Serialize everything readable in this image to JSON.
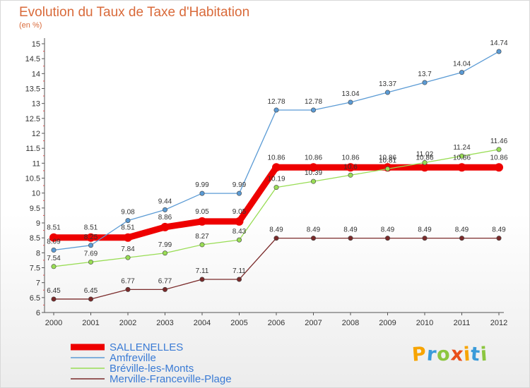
{
  "chart_data": {
    "type": "line",
    "title": "Evolution du Taux de Taxe d'Habitation",
    "subtitle": "(en %)",
    "x": [
      "2000",
      "2001",
      "2002",
      "2003",
      "2004",
      "2005",
      "2006",
      "2007",
      "2008",
      "2009",
      "2010",
      "2011",
      "2012"
    ],
    "y_ticks": [
      "6",
      "6.5",
      "7",
      "7.5",
      "8",
      "8.5",
      "9",
      "9.5",
      "10",
      "10.5",
      "11",
      "11.5",
      "12",
      "12.5",
      "13",
      "13.5",
      "14",
      "14.5",
      "15"
    ],
    "ylim": [
      6,
      15
    ],
    "series": [
      {
        "name": "SALLENELLES",
        "color": "#ee0000",
        "values": [
          8.51,
          8.51,
          8.51,
          8.86,
          9.05,
          9.05,
          10.86,
          10.86,
          10.86,
          10.86,
          10.86,
          10.86,
          10.86
        ],
        "labels": [
          "8.51",
          "8.51",
          "8.51",
          "8.86",
          "9.05",
          "9.05",
          "10.86",
          "10.86",
          "10.86",
          "10.86",
          "10.86",
          "10.86",
          "10.86"
        ]
      },
      {
        "name": "Amfreville",
        "color": "#5b9bd5",
        "values": [
          8.09,
          8.25,
          9.08,
          9.44,
          9.99,
          9.99,
          12.78,
          12.78,
          13.04,
          13.37,
          13.7,
          14.04,
          14.74
        ],
        "labels": [
          "8.09",
          "8.25",
          "9.08",
          "9.44",
          "9.99",
          "9.99",
          "12.78",
          "12.78",
          "13.04",
          "13.37",
          "13.7",
          "14.04",
          "14.74"
        ]
      },
      {
        "name": "Bréville-les-Monts",
        "color": "#99dd55",
        "values": [
          7.54,
          7.69,
          7.84,
          7.99,
          8.27,
          8.43,
          10.19,
          10.39,
          10.6,
          10.81,
          11.02,
          11.24,
          11.46
        ],
        "labels": [
          "7.54",
          "7.69",
          "7.84",
          "7.99",
          "8.27",
          "8.43",
          "10.19",
          "10.39",
          "10.6",
          "10.81",
          "11.02",
          "11.24",
          "11.46"
        ]
      },
      {
        "name": "Merville-Franceville-Plage",
        "color": "#7a2a2a",
        "values": [
          6.45,
          6.45,
          6.77,
          6.77,
          7.11,
          7.11,
          8.49,
          8.49,
          8.49,
          8.49,
          8.49,
          8.49,
          8.49
        ],
        "labels": [
          "6.45",
          "6.45",
          "6.77",
          "6.77",
          "7.11",
          "7.11",
          "8.49",
          "8.49",
          "8.49",
          "8.49",
          "8.49",
          "8.49",
          "8.49"
        ]
      }
    ],
    "grid": false,
    "legend_position": "bottom-left"
  },
  "logo": {
    "letters": [
      "P",
      "r",
      "o",
      "x",
      "i",
      "t",
      "i"
    ],
    "colors": [
      "#f7a400",
      "#3a9bd9",
      "#8cc63f",
      "#e94e1b",
      "#f7a400",
      "#3a9bd9",
      "#8cc63f"
    ]
  }
}
